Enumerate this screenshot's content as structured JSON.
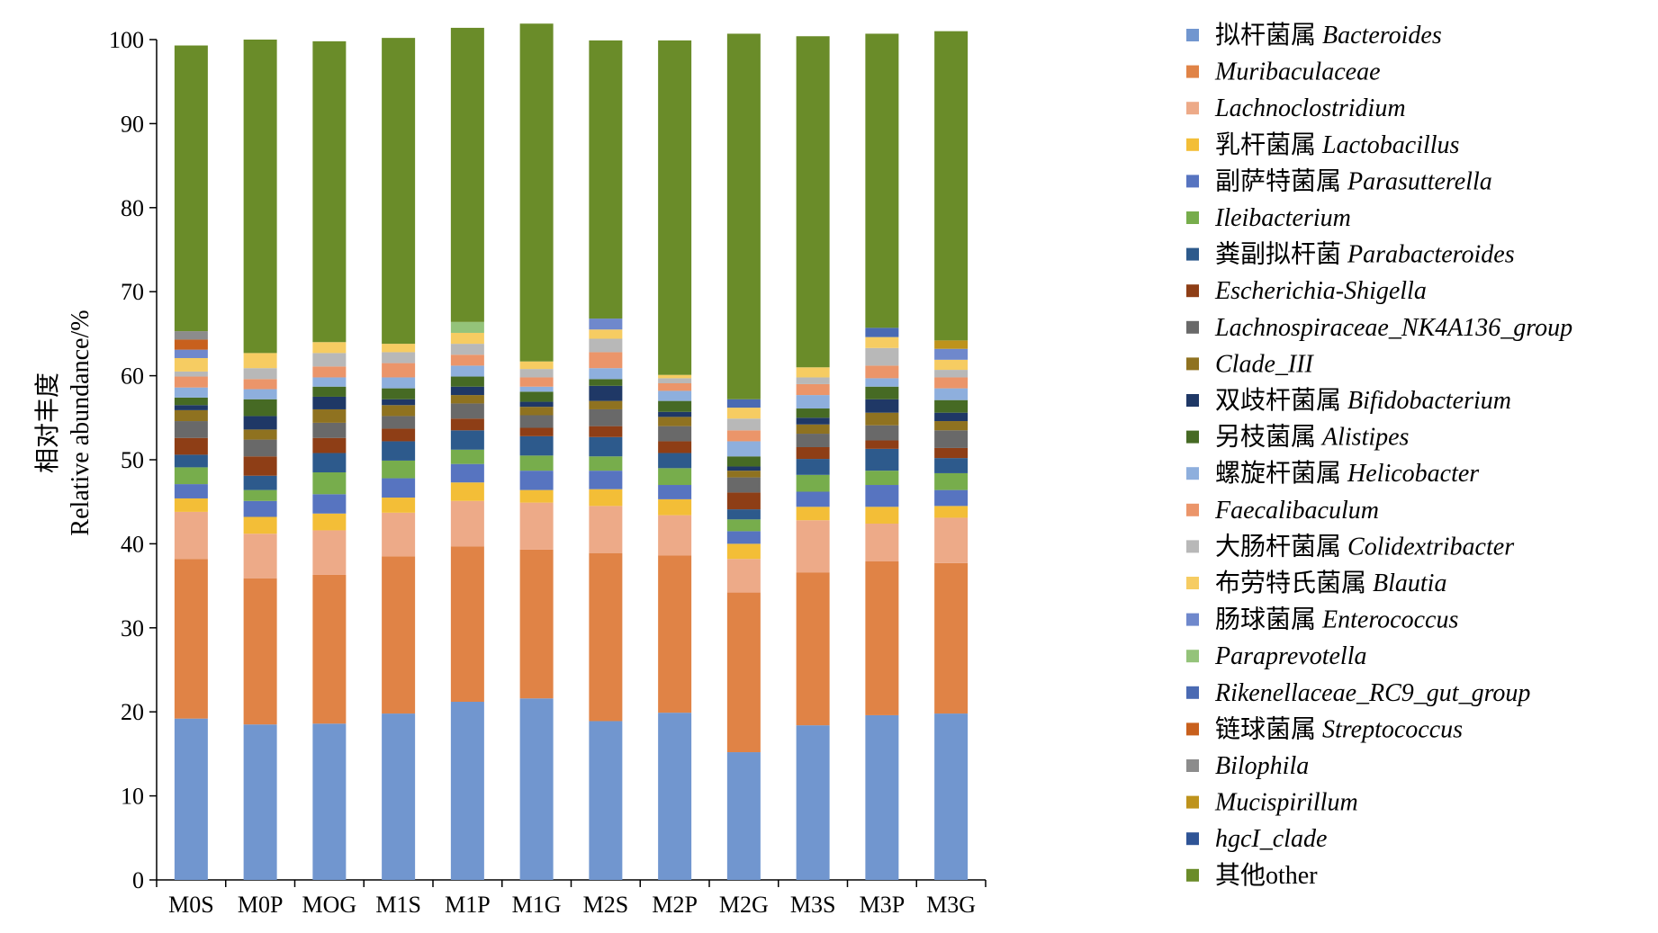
{
  "chart_data": {
    "type": "bar",
    "stacked": true,
    "ylabel_cn": "相对丰度",
    "ylabel_en": "Relative abundance/%",
    "xlabel": "",
    "ylim": [
      0,
      100
    ],
    "yticks": [
      0,
      10,
      20,
      30,
      40,
      50,
      60,
      70,
      80,
      90,
      100
    ],
    "grid": false,
    "legend_position": "right",
    "categories": [
      "M0S",
      "M0P",
      "MOG",
      "M1S",
      "M1P",
      "M1G",
      "M2S",
      "M2P",
      "M2G",
      "M3S",
      "M3P",
      "M3G"
    ],
    "series": [
      {
        "name_cn": "拟杆菌属",
        "name_latin": "Bacteroides",
        "color": "#7196CF",
        "values": [
          19.2,
          18.5,
          18.6,
          19.8,
          21.2,
          21.6,
          18.9,
          19.9,
          15.2,
          18.4,
          19.6,
          19.8
        ]
      },
      {
        "name_cn": "",
        "name_latin": "Muribaculaceae",
        "color": "#E08346",
        "values": [
          19.0,
          17.4,
          17.7,
          18.7,
          18.5,
          17.7,
          20.0,
          18.7,
          19.0,
          18.2,
          18.3,
          17.9
        ]
      },
      {
        "name_cn": "",
        "name_latin": "Lachnoclostridium",
        "color": "#EDAA88",
        "values": [
          5.6,
          5.3,
          5.3,
          5.2,
          5.4,
          5.6,
          5.6,
          4.8,
          4.0,
          6.2,
          4.5,
          5.4
        ]
      },
      {
        "name_cn": "乳杆菌属",
        "name_latin": "Lactobacillus",
        "color": "#F3BE37",
        "values": [
          1.6,
          2.0,
          2.0,
          1.8,
          2.2,
          1.5,
          2.0,
          1.9,
          1.8,
          1.6,
          2.0,
          1.4
        ]
      },
      {
        "name_cn": "副萨特菌属",
        "name_latin": "Parasutterella",
        "color": "#5774C0",
        "values": [
          1.7,
          1.9,
          2.3,
          2.3,
          2.2,
          2.3,
          2.2,
          1.7,
          1.5,
          1.8,
          2.6,
          1.9
        ]
      },
      {
        "name_cn": "",
        "name_latin": "Ileibacterium",
        "color": "#77AD4C",
        "values": [
          2.0,
          1.3,
          2.6,
          2.1,
          1.7,
          1.8,
          1.7,
          2.0,
          1.4,
          2.0,
          1.7,
          2.0
        ]
      },
      {
        "name_cn": "粪副拟杆菌",
        "name_latin": "Parabacteroides",
        "color": "#2D5A8C",
        "values": [
          1.5,
          1.7,
          2.3,
          2.3,
          2.3,
          2.3,
          2.3,
          1.8,
          1.2,
          1.9,
          2.6,
          1.8
        ]
      },
      {
        "name_cn": "",
        "name_latin": "Escherichia-Shigella",
        "color": "#8E3E16",
        "values": [
          2.0,
          2.3,
          1.8,
          1.5,
          1.4,
          1.0,
          1.3,
          1.4,
          2.0,
          1.4,
          1.0,
          1.2
        ]
      },
      {
        "name_cn": "",
        "name_latin": "Lachnospiraceae_NK4A136_group",
        "color": "#696969",
        "values": [
          2.0,
          2.0,
          1.8,
          1.5,
          1.8,
          1.5,
          2.0,
          1.8,
          1.8,
          1.6,
          1.8,
          2.1
        ]
      },
      {
        "name_cn": "",
        "name_latin": "Clade_III",
        "color": "#8F7220",
        "values": [
          1.3,
          1.2,
          1.6,
          1.3,
          1.0,
          1.0,
          1.0,
          1.1,
          0.8,
          1.1,
          1.5,
          1.1
        ]
      },
      {
        "name_cn": "双歧杆菌属",
        "name_latin": "Bifidobacterium",
        "color": "#1F3866",
        "values": [
          0.6,
          1.6,
          1.5,
          0.7,
          1.0,
          0.6,
          1.8,
          0.6,
          0.5,
          0.8,
          1.6,
          1.0
        ]
      },
      {
        "name_cn": "另枝菌属",
        "name_latin": "Alistipes",
        "color": "#466A24",
        "values": [
          0.9,
          2.0,
          1.2,
          1.3,
          1.2,
          1.2,
          0.8,
          1.3,
          1.2,
          1.1,
          1.5,
          1.5
        ]
      },
      {
        "name_cn": "螺旋杆菌属",
        "name_latin": "Helicobacter",
        "color": "#8EAFDD",
        "values": [
          1.2,
          1.2,
          1.1,
          1.3,
          1.3,
          0.6,
          1.3,
          1.2,
          1.8,
          1.6,
          1.0,
          1.4
        ]
      },
      {
        "name_cn": "",
        "name_latin": "Faecalibaculum",
        "color": "#EB956A",
        "values": [
          1.3,
          1.2,
          1.3,
          1.7,
          1.3,
          1.1,
          1.9,
          0.9,
          1.3,
          1.3,
          1.5,
          1.3
        ]
      },
      {
        "name_cn": "大肠杆菌属",
        "name_latin": "Colidextribacter",
        "color": "#B8B8B8",
        "values": [
          0.6,
          1.3,
          1.6,
          1.3,
          1.3,
          1.0,
          1.6,
          0.6,
          1.4,
          0.8,
          2.1,
          0.9
        ]
      },
      {
        "name_cn": "布劳特氏菌属",
        "name_latin": "Blautia",
        "color": "#F6CC62",
        "values": [
          1.6,
          1.8,
          1.3,
          1.0,
          1.3,
          0.9,
          1.1,
          0.4,
          1.3,
          1.2,
          1.3,
          1.2
        ]
      },
      {
        "name_cn": "肠球菌属",
        "name_latin": "Enterococcus",
        "color": "#6F88CC",
        "values": [
          1.0,
          0.0,
          0.0,
          0.0,
          0.0,
          0.0,
          1.3,
          0.0,
          0.0,
          0.0,
          0.0,
          1.3
        ]
      },
      {
        "name_cn": "",
        "name_latin": "Paraprevotella",
        "color": "#94C37A",
        "values": [
          0.0,
          0.0,
          0.0,
          0.0,
          1.3,
          0.0,
          0.0,
          0.0,
          0.0,
          0.0,
          0.0,
          0.0
        ]
      },
      {
        "name_cn": "",
        "name_latin": "Rikenellaceae_RC9_gut_group",
        "color": "#4A6AB3",
        "values": [
          0.0,
          0.0,
          0.0,
          0.0,
          0.0,
          0.0,
          0.0,
          0.0,
          1.0,
          0.0,
          1.1,
          0.0
        ]
      },
      {
        "name_cn": "链球菌属",
        "name_latin": "Streptococcus",
        "color": "#C8601D",
        "values": [
          1.2,
          0.0,
          0.0,
          0.0,
          0.0,
          0.0,
          0.0,
          0.0,
          0.0,
          0.0,
          0.0,
          0.0
        ]
      },
      {
        "name_cn": "",
        "name_latin": "Bilophila",
        "color": "#8C8C8C",
        "values": [
          1.0,
          0.0,
          0.0,
          0.0,
          0.0,
          0.0,
          0.0,
          0.0,
          0.0,
          0.0,
          0.0,
          0.0
        ]
      },
      {
        "name_cn": "",
        "name_latin": "Mucispirillum",
        "color": "#BE931C",
        "values": [
          0.0,
          0.0,
          0.0,
          0.0,
          0.0,
          0.0,
          0.0,
          0.0,
          0.0,
          0.0,
          0.0,
          1.0
        ]
      },
      {
        "name_cn": "",
        "name_latin": "hgcI_clade",
        "color": "#2F5496",
        "values": [
          0.0,
          0.0,
          0.0,
          0.0,
          0.0,
          0.0,
          0.0,
          0.0,
          0.0,
          0.0,
          0.0,
          0.0
        ]
      },
      {
        "name_cn": "其他",
        "name_latin": "other",
        "color": "#6A8C29",
        "values": [
          34.0,
          37.3,
          35.8,
          36.4,
          35.0,
          40.2,
          33.1,
          39.8,
          43.5,
          39.4,
          35.0,
          36.8
        ]
      }
    ]
  }
}
